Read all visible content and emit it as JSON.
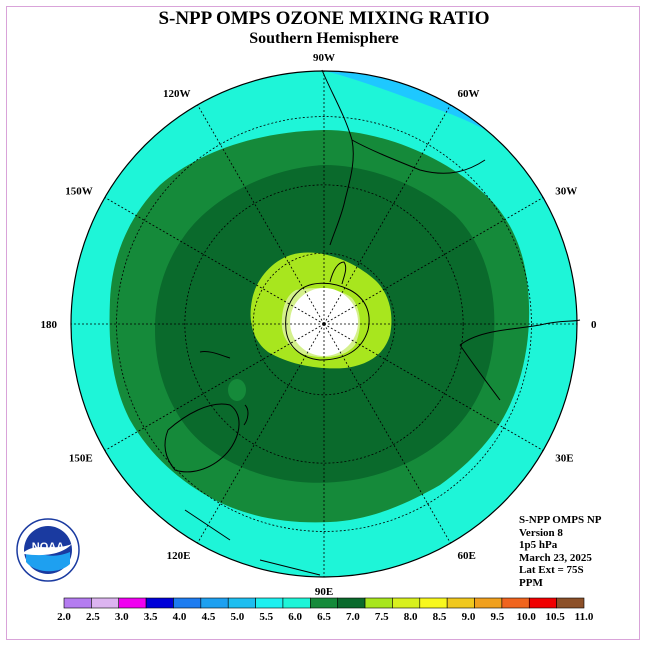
{
  "header": {
    "title": "S-NPP OMPS OZONE MIXING RATIO",
    "subtitle": "Southern Hemisphere"
  },
  "map": {
    "projection": "south-polar-stereographic",
    "lat_extent": "75S",
    "longitude_labels": [
      "90W",
      "60W",
      "30W",
      "0",
      "30E",
      "60E",
      "90E",
      "120E",
      "150E",
      "180",
      "150W",
      "120W"
    ],
    "colors": {
      "ocean_outer": "#1ef5d8",
      "high_blue": "#1ec8ff",
      "green_mid": "#158a3a",
      "green_dark": "#0a6a2c",
      "yellow_green": "#a8e61e",
      "light_green": "#d4f08c",
      "pole_white": "#ffffff",
      "coast": "#000000",
      "grid": "#000000"
    }
  },
  "info": {
    "lines": [
      "S-NPP OMPS NP",
      "Version 8",
      "1p5 hPa",
      "March 23, 2025",
      "Lat Ext = 75S",
      "PPM"
    ]
  },
  "logo": {
    "text": "NOAA"
  },
  "colorbar": {
    "tick_labels": [
      "2.0",
      "2.5",
      "3.0",
      "3.5",
      "4.0",
      "4.5",
      "5.0",
      "5.5",
      "6.0",
      "6.5",
      "7.0",
      "7.5",
      "8.0",
      "8.5",
      "9.0",
      "9.5",
      "10.0",
      "10.5",
      "11.0"
    ],
    "colors": [
      "#b47cf0",
      "#dcb4f0",
      "#f000f0",
      "#0000d8",
      "#1e7cf0",
      "#1ea0f0",
      "#1ebef0",
      "#1ef0f0",
      "#1ef5d8",
      "#158a3a",
      "#0a6a2c",
      "#a8e61e",
      "#d8f01e",
      "#f8f81e",
      "#f0c81e",
      "#f0a01e",
      "#f0641e",
      "#f00000",
      "#8c5028"
    ]
  }
}
